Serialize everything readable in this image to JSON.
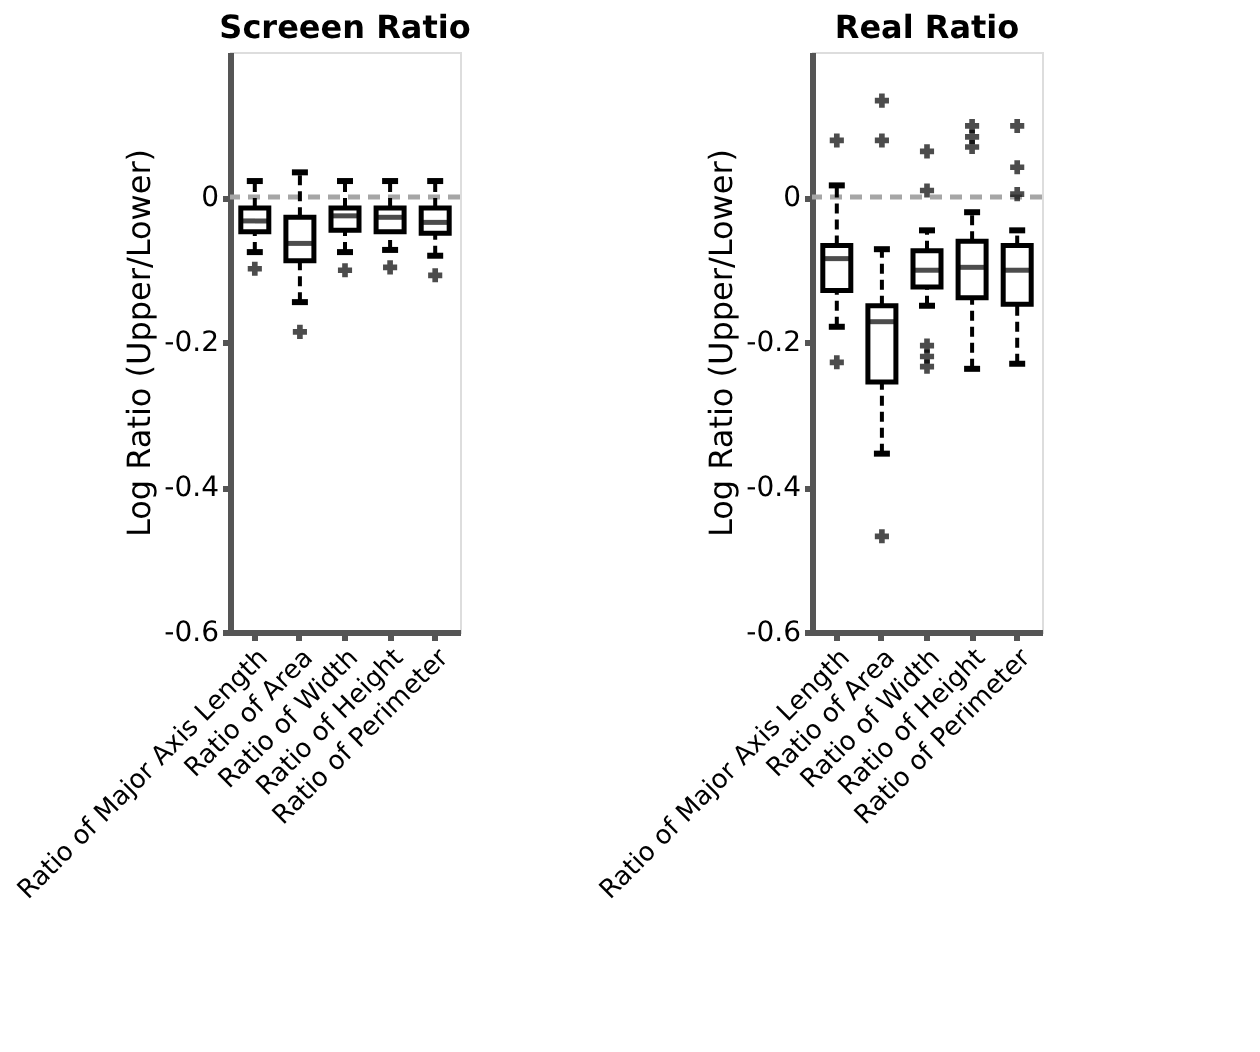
{
  "chart_data": [
    {
      "type": "box",
      "title": "Screeen Ratio",
      "ylabel": "Log Ratio (Upper/Lower)",
      "categories": [
        "Ratio of Major Axis Length",
        "Ratio of Area",
        "Ratio of Width",
        "Ratio of Height",
        "Ratio of Perimeter"
      ],
      "boxes": [
        {
          "low": -0.076,
          "q1": -0.048,
          "median": -0.033,
          "q3": -0.015,
          "high": 0.022,
          "outliers": [
            -0.099
          ]
        },
        {
          "low": -0.145,
          "q1": -0.088,
          "median": -0.064,
          "q3": -0.028,
          "high": 0.034,
          "outliers": [
            -0.186
          ]
        },
        {
          "low": -0.076,
          "q1": -0.046,
          "median": -0.026,
          "q3": -0.015,
          "high": 0.022,
          "outliers": [
            -0.101
          ]
        },
        {
          "low": -0.073,
          "q1": -0.048,
          "median": -0.028,
          "q3": -0.015,
          "high": 0.022,
          "outliers": [
            -0.097
          ]
        },
        {
          "low": -0.081,
          "q1": -0.05,
          "median": -0.035,
          "q3": -0.015,
          "high": 0.022,
          "outliers": [
            -0.108
          ]
        }
      ],
      "ylim": [
        -0.6,
        0.2
      ],
      "yticks": [
        -0.6,
        -0.4,
        -0.2,
        0
      ],
      "ref_lines": [
        {
          "axis": "y",
          "value": 0,
          "label": null,
          "color": "#a6a6a6",
          "line_style": "dashed"
        }
      ],
      "marker": "cross",
      "grid": false
    },
    {
      "type": "box",
      "title": "Real Ratio",
      "ylabel": "Log Ratio (Upper/Lower)",
      "categories": [
        "Ratio of Major Axis Length",
        "Ratio of Area",
        "Ratio of Width",
        "Ratio of Height",
        "Ratio of Perimeter"
      ],
      "boxes": [
        {
          "low": -0.179,
          "q1": -0.129,
          "median": -0.085,
          "q3": -0.067,
          "high": 0.016,
          "outliers": [
            0.078,
            -0.228
          ]
        },
        {
          "low": -0.354,
          "q1": -0.255,
          "median": -0.172,
          "q3": -0.15,
          "high": -0.072,
          "outliers": [
            0.133,
            0.078,
            -0.468
          ]
        },
        {
          "low": -0.15,
          "q1": -0.124,
          "median": -0.101,
          "q3": -0.074,
          "high": -0.046,
          "outliers": [
            0.063,
            0.009,
            -0.205,
            -0.22,
            -0.234
          ]
        },
        {
          "low": -0.237,
          "q1": -0.139,
          "median": -0.097,
          "q3": -0.061,
          "high": -0.021,
          "outliers": [
            0.098,
            0.083,
            0.069
          ]
        },
        {
          "low": -0.23,
          "q1": -0.148,
          "median": -0.101,
          "q3": -0.067,
          "high": -0.046,
          "outliers": [
            0.098,
            0.041,
            0.004
          ]
        }
      ],
      "ylim": [
        -0.6,
        0.2
      ],
      "yticks": [
        -0.6,
        -0.4,
        -0.2,
        0
      ],
      "ref_lines": [
        {
          "axis": "y",
          "value": 0,
          "label": null,
          "color": "#a6a6a6",
          "line_style": "dashed"
        }
      ],
      "marker": "cross",
      "grid": false
    }
  ]
}
